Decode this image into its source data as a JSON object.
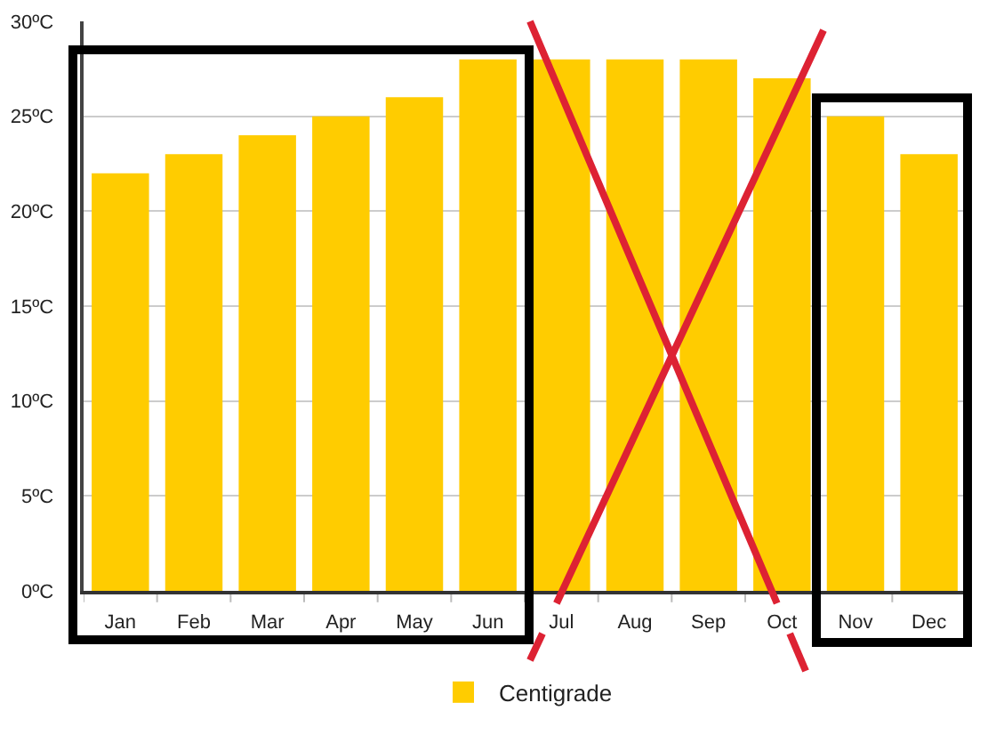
{
  "chart_data": {
    "type": "bar",
    "categories": [
      "Jan",
      "Feb",
      "Mar",
      "Apr",
      "May",
      "Jun",
      "Jul",
      "Aug",
      "Sep",
      "Oct",
      "Nov",
      "Dec"
    ],
    "series": [
      {
        "name": "Centigrade",
        "color": "#ffcc00",
        "values": [
          22,
          23,
          24,
          25,
          26,
          28,
          28,
          28,
          28,
          27,
          25,
          23
        ]
      }
    ],
    "ylim": [
      0,
      30
    ],
    "yticks": [
      {
        "value": 0,
        "label": "0ºC"
      },
      {
        "value": 5,
        "label": "5ºC"
      },
      {
        "value": 10,
        "label": "10ºC"
      },
      {
        "value": 15,
        "label": "15ºC"
      },
      {
        "value": 20,
        "label": "20ºC"
      },
      {
        "value": 25,
        "label": "25ºC"
      },
      {
        "value": 30,
        "label": "30ºC"
      }
    ],
    "grid": "y",
    "legend": "bottom"
  }
}
